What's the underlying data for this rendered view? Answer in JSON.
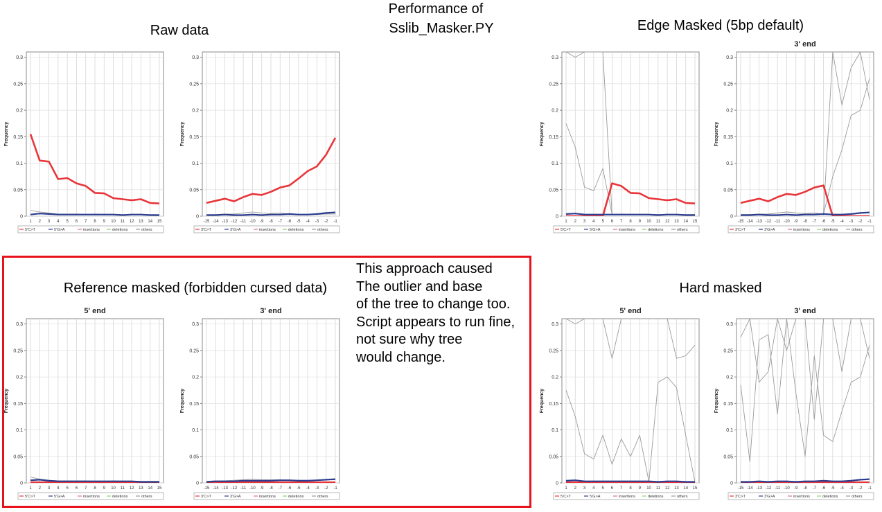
{
  "headings": {
    "title_line1": "Performance of",
    "title_line2": "Sslib_Masker.PY",
    "raw": "Raw data",
    "edge": "Edge Masked (5bp default)",
    "reference": "Reference masked (forbidden cursed data)",
    "hard": "Hard masked"
  },
  "note": [
    "This approach caused",
    "The outlier and base",
    "of the tree to change too.",
    "Script appears to run fine,",
    "not sure why tree",
    "would change."
  ],
  "colors": {
    "ct": "#e8353a",
    "ga": "#2a3c8f",
    "ins": "#e07090",
    "del": "#8fce7a",
    "oth": "#9a9a9a",
    "box": "#e8121b"
  },
  "chart_data": [
    {
      "id": "raw5",
      "type": "line",
      "title": "",
      "ylabel": "Frequency",
      "ylim": [
        0,
        0.31
      ],
      "x": [
        1,
        2,
        3,
        4,
        5,
        6,
        7,
        8,
        9,
        10,
        11,
        12,
        13,
        14,
        15
      ],
      "xticks": [
        "1",
        "2",
        "3",
        "4",
        "5",
        "6",
        "7",
        "8",
        "9",
        "10",
        "11",
        "12",
        "13",
        "14",
        "15"
      ],
      "yticks": [
        "0",
        "0.05",
        "0.1",
        "0.15",
        "0.2",
        "0.25",
        "0.3"
      ],
      "legend": [
        "5'C>T",
        "5'G>A",
        "insertions",
        "deletions",
        "others"
      ],
      "series": [
        {
          "name": "5'C>T",
          "key": "ct",
          "values": [
            0.155,
            0.105,
            0.103,
            0.07,
            0.072,
            0.062,
            0.057,
            0.044,
            0.043,
            0.034,
            0.032,
            0.03,
            0.032,
            0.025,
            0.024
          ]
        },
        {
          "name": "5'G>A",
          "key": "ga",
          "values": [
            0.003,
            0.005,
            0.004,
            0.003,
            0.003,
            0.003,
            0.003,
            0.003,
            0.003,
            0.003,
            0.002,
            0.003,
            0.003,
            0.002,
            0.002
          ]
        },
        {
          "name": "others",
          "key": "oth",
          "values": [
            0.011,
            0.008,
            0.006,
            0.004,
            0.004,
            0.004,
            0.003,
            0.004,
            0.003,
            0.003,
            0.003,
            0.003,
            0.003,
            0.003,
            0.003
          ]
        }
      ]
    },
    {
      "id": "raw3",
      "type": "line",
      "title": "",
      "ylabel": "Frequency",
      "ylim": [
        0,
        0.31
      ],
      "x": [
        -15,
        -14,
        -13,
        -12,
        -11,
        -10,
        -9,
        -8,
        -7,
        -6,
        -5,
        -4,
        -3,
        -2,
        -1
      ],
      "xticks": [
        "-15",
        "-14",
        "-13",
        "-12",
        "-11",
        "-10",
        "-9",
        "-8",
        "-7",
        "-6",
        "-5",
        "-4",
        "-3",
        "-2",
        "-1"
      ],
      "yticks": [
        "0",
        "0.05",
        "0.1",
        "0.15",
        "0.2",
        "0.25",
        "0.3"
      ],
      "legend": [
        "3'C>T",
        "3'G>A",
        "insertions",
        "deletions",
        "others"
      ],
      "series": [
        {
          "name": "3'C>T",
          "key": "ct",
          "values": [
            0.025,
            0.029,
            0.033,
            0.028,
            0.036,
            0.042,
            0.04,
            0.046,
            0.054,
            0.058,
            0.071,
            0.085,
            0.094,
            0.116,
            0.148
          ]
        },
        {
          "name": "3'G>A",
          "key": "ga",
          "values": [
            0.002,
            0.002,
            0.003,
            0.002,
            0.002,
            0.003,
            0.002,
            0.003,
            0.003,
            0.004,
            0.003,
            0.003,
            0.004,
            0.006,
            0.007
          ]
        },
        {
          "name": "others",
          "key": "oth",
          "values": [
            0.003,
            0.003,
            0.004,
            0.004,
            0.006,
            0.008,
            0.006,
            0.005,
            0.006,
            0.004,
            0.003,
            0.004,
            0.003,
            0.004,
            0.004
          ]
        }
      ]
    },
    {
      "id": "edge5",
      "type": "line",
      "title": "",
      "ylabel": "Frequency",
      "ylim": [
        0,
        0.31
      ],
      "x": [
        1,
        2,
        3,
        4,
        5,
        6,
        7,
        8,
        9,
        10,
        11,
        12,
        13,
        14,
        15
      ],
      "xticks": [
        "1",
        "2",
        "3",
        "4",
        "5",
        "6",
        "7",
        "8",
        "9",
        "10",
        "11",
        "12",
        "13",
        "14",
        "15"
      ],
      "yticks": [
        "0",
        "0.05",
        "0.1",
        "0.15",
        "0.2",
        "0.25",
        "0.3"
      ],
      "legend": [
        "5'C>T",
        "5'G>A",
        "insertions",
        "deletions",
        "others"
      ],
      "series": [
        {
          "name": "5'C>T",
          "key": "ct",
          "values": [
            0,
            0,
            0,
            0,
            0,
            0.062,
            0.057,
            0.044,
            0.043,
            0.034,
            0.032,
            0.03,
            0.032,
            0.025,
            0.024
          ]
        },
        {
          "name": "5'G>A",
          "key": "ga",
          "values": [
            0.004,
            0.005,
            0.003,
            0.003,
            0.003,
            0.003,
            0.003,
            0.003,
            0.003,
            0.003,
            0.002,
            0.003,
            0.003,
            0.002,
            0.002
          ]
        },
        {
          "name": "others",
          "key": "oth",
          "values": [
            0.175,
            0.13,
            0.055,
            0.048,
            0.09,
            0.003,
            0.004,
            0.003,
            0.003,
            0.003,
            0.003,
            0.003,
            0.003,
            0.003,
            0.003
          ]
        },
        {
          "name": "others",
          "key": "oth",
          "values": [
            0.33,
            0.3,
            0.33,
            0.33,
            0.33,
            0.003,
            0.003,
            0.003,
            0.003,
            0.003,
            0.003,
            0.003,
            0.003,
            0.003,
            0.003
          ]
        }
      ]
    },
    {
      "id": "edge3",
      "type": "line",
      "title": "3' end",
      "ylabel": "Frequency",
      "ylim": [
        0,
        0.31
      ],
      "x": [
        -15,
        -14,
        -13,
        -12,
        -11,
        -10,
        -9,
        -8,
        -7,
        -6,
        -5,
        -4,
        -3,
        -2,
        -1
      ],
      "xticks": [
        "-15",
        "-14",
        "-13",
        "-12",
        "-11",
        "-10",
        "-9",
        "-8",
        "-7",
        "-6",
        "-5",
        "-4",
        "-3",
        "-2",
        "-1"
      ],
      "yticks": [
        "0",
        "0.05",
        "0.1",
        "0.15",
        "0.2",
        "0.25",
        "0.3"
      ],
      "legend": [
        "3'C>T",
        "3'G>A",
        "insertions",
        "deletions",
        "others"
      ],
      "series": [
        {
          "name": "3'C>T",
          "key": "ct",
          "values": [
            0.025,
            0.029,
            0.033,
            0.028,
            0.036,
            0.042,
            0.04,
            0.046,
            0.054,
            0.058,
            0,
            0,
            0,
            0,
            0
          ]
        },
        {
          "name": "3'G>A",
          "key": "ga",
          "values": [
            0.002,
            0.002,
            0.003,
            0.002,
            0.002,
            0.003,
            0.002,
            0.003,
            0.003,
            0.004,
            0.003,
            0.003,
            0.004,
            0.006,
            0.007
          ]
        },
        {
          "name": "others",
          "key": "oth",
          "values": [
            0.003,
            0.003,
            0.004,
            0.004,
            0.006,
            0.008,
            0.006,
            0.005,
            0.006,
            0.004,
            0.075,
            0.125,
            0.19,
            0.2,
            0.26
          ]
        },
        {
          "name": "others",
          "key": "oth",
          "values": [
            0.003,
            0.003,
            0.004,
            0.004,
            0.006,
            0.008,
            0.006,
            0.005,
            0.006,
            0.004,
            0.33,
            0.21,
            0.28,
            0.33,
            0.22
          ]
        }
      ]
    },
    {
      "id": "ref5",
      "type": "line",
      "title": "5' end",
      "ylabel": "Frequency",
      "ylim": [
        0,
        0.31
      ],
      "x": [
        1,
        2,
        3,
        4,
        5,
        6,
        7,
        8,
        9,
        10,
        11,
        12,
        13,
        14,
        15
      ],
      "xticks": [
        "1",
        "2",
        "3",
        "4",
        "5",
        "6",
        "7",
        "8",
        "9",
        "10",
        "11",
        "12",
        "13",
        "14",
        "15"
      ],
      "yticks": [
        "0",
        "0.05",
        "0.1",
        "0.15",
        "0.2",
        "0.25",
        "0.3"
      ],
      "legend": [
        "5'C>T",
        "5'G>A",
        "insertions",
        "deletions",
        "others"
      ],
      "series": [
        {
          "name": "5'C>T",
          "key": "ct",
          "values": [
            0.001,
            0.001,
            0.001,
            0.001,
            0.001,
            0.001,
            0.001,
            0.001,
            0.001,
            0.001,
            0.001,
            0.001,
            0.001,
            0.001,
            0.001
          ]
        },
        {
          "name": "5'G>A",
          "key": "ga",
          "values": [
            0.005,
            0.006,
            0.004,
            0.003,
            0.003,
            0.003,
            0.003,
            0.003,
            0.003,
            0.003,
            0.003,
            0.003,
            0.002,
            0.002,
            0.002
          ]
        },
        {
          "name": "others",
          "key": "oth",
          "values": [
            0.011,
            0.007,
            0.005,
            0.004,
            0.004,
            0.004,
            0.004,
            0.003,
            0.003,
            0.004,
            0.003,
            0.003,
            0.003,
            0.003,
            0.003
          ]
        }
      ]
    },
    {
      "id": "ref3",
      "type": "line",
      "title": "3' end",
      "ylabel": "Frequency",
      "ylim": [
        0,
        0.31
      ],
      "x": [
        -15,
        -14,
        -13,
        -12,
        -11,
        -10,
        -9,
        -8,
        -7,
        -6,
        -5,
        -4,
        -3,
        -2,
        -1
      ],
      "xticks": [
        "-15",
        "-14",
        "-13",
        "-12",
        "-11",
        "-10",
        "-9",
        "-8",
        "-7",
        "-6",
        "-5",
        "-4",
        "-3",
        "-2",
        "-1"
      ],
      "yticks": [
        "0",
        "0.05",
        "0.1",
        "0.15",
        "0.2",
        "0.25",
        "0.3"
      ],
      "legend": [
        "3'C>T",
        "3'G>A",
        "insertions",
        "deletions",
        "others"
      ],
      "series": [
        {
          "name": "3'C>T",
          "key": "ct",
          "values": [
            0.001,
            0.001,
            0.001,
            0.001,
            0.001,
            0.001,
            0.001,
            0.001,
            0.001,
            0.001,
            0.001,
            0.001,
            0.001,
            0.001,
            0.001
          ]
        },
        {
          "name": "3'G>A",
          "key": "ga",
          "values": [
            0.002,
            0.003,
            0.003,
            0.003,
            0.004,
            0.004,
            0.004,
            0.004,
            0.005,
            0.005,
            0.004,
            0.004,
            0.005,
            0.006,
            0.007
          ]
        },
        {
          "name": "others",
          "key": "oth",
          "values": [
            0.003,
            0.004,
            0.004,
            0.005,
            0.006,
            0.007,
            0.006,
            0.006,
            0.006,
            0.005,
            0.005,
            0.005,
            0.005,
            0.006,
            0.006
          ]
        }
      ]
    },
    {
      "id": "hard5",
      "type": "line",
      "title": "5' end",
      "ylabel": "Frequency",
      "ylim": [
        0,
        0.31
      ],
      "x": [
        1,
        2,
        3,
        4,
        5,
        6,
        7,
        8,
        9,
        10,
        11,
        12,
        13,
        14,
        15
      ],
      "xticks": [
        "1",
        "2",
        "3",
        "4",
        "5",
        "6",
        "7",
        "8",
        "9",
        "10",
        "11",
        "12",
        "13",
        "14",
        "15"
      ],
      "yticks": [
        "0",
        "0.05",
        "0.1",
        "0.15",
        "0.2",
        "0.25",
        "0.3"
      ],
      "legend": [
        "5'C>T",
        "5'G>A",
        "insertions",
        "deletions",
        "others"
      ],
      "series": [
        {
          "name": "5'C>T",
          "key": "ct",
          "values": [
            0.001,
            0.001,
            0.001,
            0.001,
            0.001,
            0.001,
            0.001,
            0.001,
            0.001,
            0.001,
            0.001,
            0.001,
            0.001,
            0.001,
            0.001
          ]
        },
        {
          "name": "5'G>A",
          "key": "ga",
          "values": [
            0.004,
            0.005,
            0.003,
            0.003,
            0.003,
            0.003,
            0.003,
            0.003,
            0.003,
            0.003,
            0.002,
            0.003,
            0.003,
            0.002,
            0.002
          ]
        },
        {
          "name": "others",
          "key": "oth",
          "values": [
            0.175,
            0.125,
            0.055,
            0.045,
            0.09,
            0.035,
            0.083,
            0.05,
            0.09,
            0.002,
            0.19,
            0.2,
            0.18,
            0.09,
            0.002
          ]
        },
        {
          "name": "others",
          "key": "oth",
          "values": [
            0.33,
            0.3,
            0.33,
            0.33,
            0.33,
            0.235,
            0.33,
            0.33,
            0.33,
            0.33,
            0.33,
            0.33,
            0.235,
            0.24,
            0.26
          ]
        }
      ]
    },
    {
      "id": "hard3",
      "type": "line",
      "title": "3' end",
      "ylabel": "Frequency",
      "ylim": [
        0,
        0.31
      ],
      "x": [
        -15,
        -14,
        -13,
        -12,
        -11,
        -10,
        -9,
        -8,
        -7,
        -6,
        -5,
        -4,
        -3,
        -2,
        -1
      ],
      "xticks": [
        "-15",
        "-14",
        "-13",
        "-12",
        "-11",
        "-10",
        "-9",
        "-8",
        "-7",
        "-6",
        "-5",
        "-4",
        "-3",
        "-2",
        "-1"
      ],
      "yticks": [
        "0",
        "0.05",
        "0.1",
        "0.15",
        "0.2",
        "0.25",
        "0.3"
      ],
      "legend": [
        "3'C>T",
        "3'G>A",
        "insertions",
        "deletions",
        "others"
      ],
      "series": [
        {
          "name": "3'C>T",
          "key": "ct",
          "values": [
            0.001,
            0.001,
            0.001,
            0.001,
            0.001,
            0.001,
            0.001,
            0.001,
            0.001,
            0.001,
            0.001,
            0.001,
            0.001,
            0.001,
            0.001
          ]
        },
        {
          "name": "3'G>A",
          "key": "ga",
          "values": [
            0.002,
            0.002,
            0.003,
            0.002,
            0.003,
            0.003,
            0.002,
            0.003,
            0.003,
            0.004,
            0.003,
            0.003,
            0.004,
            0.006,
            0.007
          ]
        },
        {
          "name": "others",
          "key": "oth",
          "values": [
            0.185,
            0.04,
            0.27,
            0.28,
            0.13,
            0.33,
            0.17,
            0.05,
            0.24,
            0.09,
            0.078,
            0.135,
            0.19,
            0.2,
            0.26
          ]
        },
        {
          "name": "others",
          "key": "oth",
          "values": [
            0.275,
            0.33,
            0.19,
            0.21,
            0.33,
            0.25,
            0.33,
            0.33,
            0.12,
            0.33,
            0.33,
            0.21,
            0.33,
            0.33,
            0.235
          ]
        }
      ]
    }
  ]
}
